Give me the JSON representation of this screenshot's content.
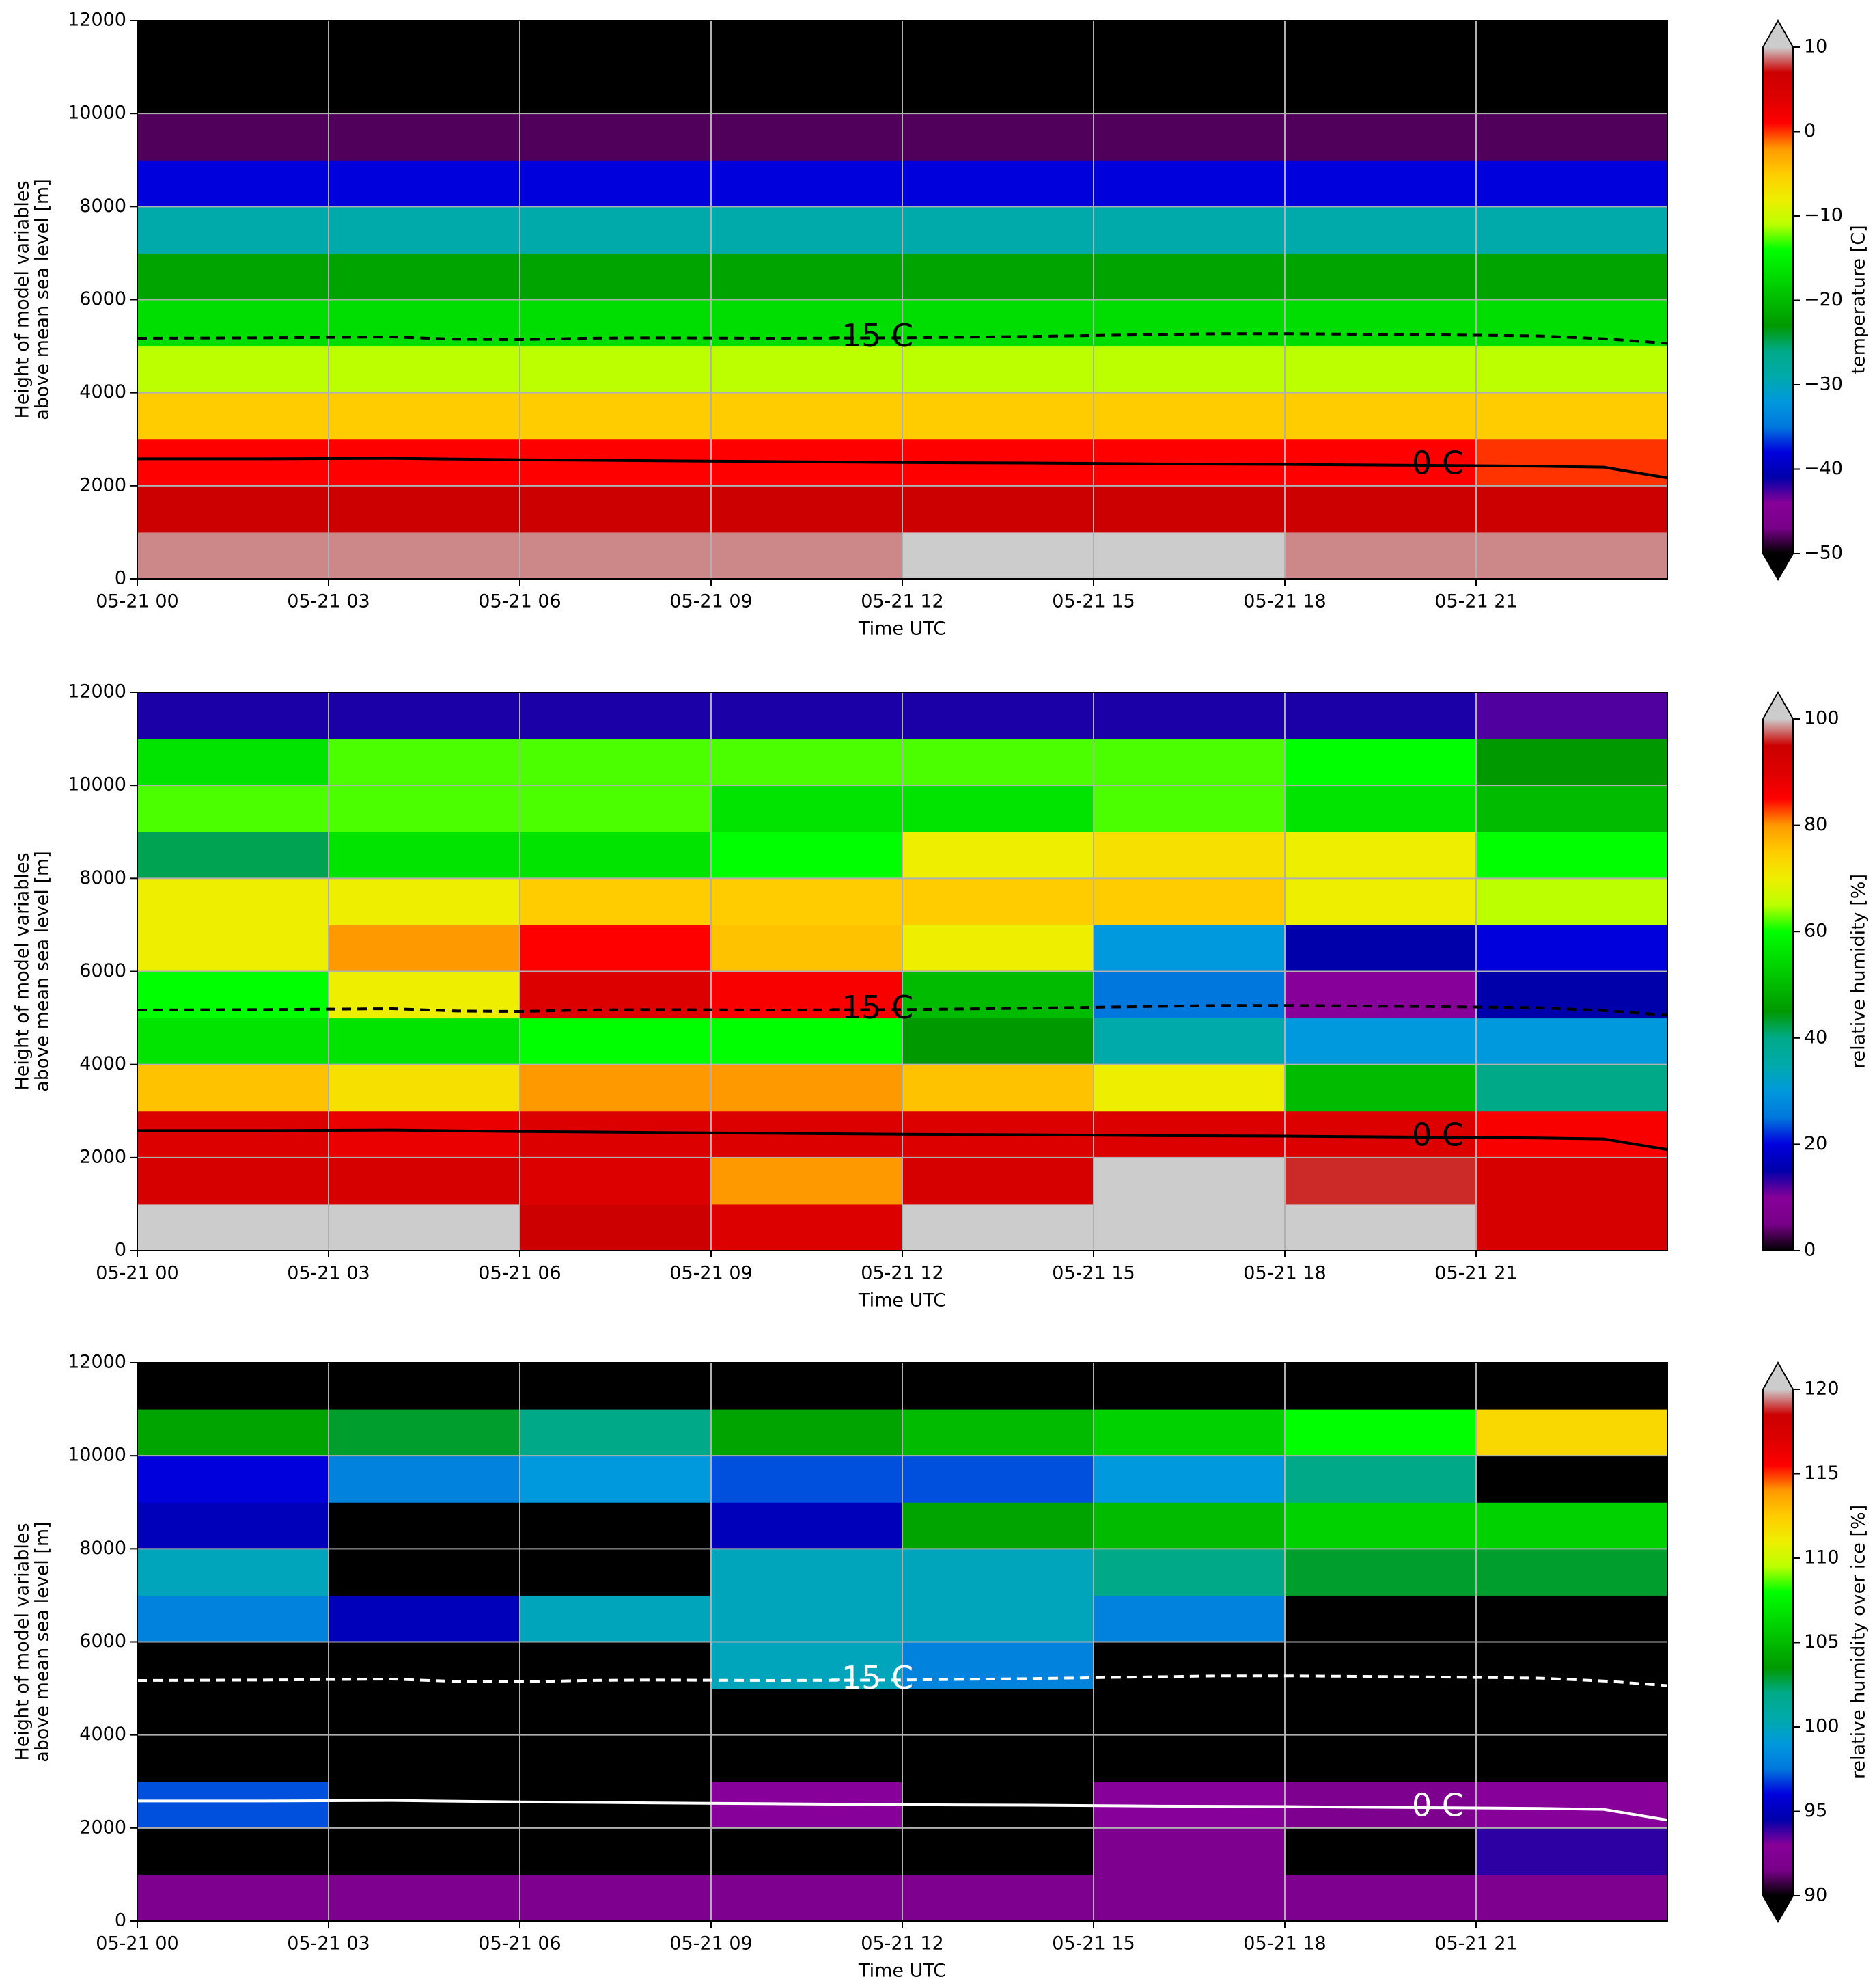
{
  "chart_data": [
    {
      "type": "heatmap",
      "xlabel": "Time UTC",
      "ylabel": [
        "Height of model variables",
        "above mean sea level [m]"
      ],
      "colorbar_label": "temperature [C]",
      "clim": [
        -50,
        10
      ],
      "extend": "both",
      "cticks": [
        {
          "value": -50,
          "label": "−50"
        },
        {
          "value": -40,
          "label": "−40"
        },
        {
          "value": -30,
          "label": "−30"
        },
        {
          "value": -20,
          "label": "−20"
        },
        {
          "value": -10,
          "label": "−10"
        },
        0,
        10
      ],
      "colormap": [
        "#000000",
        "#780088",
        "#870099",
        "#0000aa",
        "#0000dd",
        "#0077dd",
        "#0099dd",
        "#00aaaa",
        "#00aa88",
        "#009900",
        "#00bb00",
        "#00dd00",
        "#00ff00",
        "#bbff00",
        "#eeee00",
        "#ffcc00",
        "#ff9900",
        "#ff0000",
        "#dd0000",
        "#cc0000",
        "#cccccc"
      ],
      "xlim": [
        0,
        24
      ],
      "ylim": [
        0,
        12000
      ],
      "grid": true,
      "xticks": [
        {
          "value": 0,
          "label": "05-21 00"
        },
        {
          "value": 3,
          "label": "05-21 03"
        },
        {
          "value": 6,
          "label": "05-21 06"
        },
        {
          "value": 9,
          "label": "05-21 09"
        },
        {
          "value": 12,
          "label": "05-21 12"
        },
        {
          "value": 15,
          "label": "05-21 15"
        },
        {
          "value": 18,
          "label": "05-21 18"
        },
        {
          "value": 21,
          "label": "05-21 21"
        }
      ],
      "yticks": [
        0,
        2000,
        4000,
        6000,
        8000,
        10000,
        12000
      ],
      "x_edges": [
        0,
        3,
        6,
        9,
        12,
        15,
        18,
        21,
        24
      ],
      "y_edges": [
        0,
        1000,
        2000,
        3000,
        4000,
        5000,
        6000,
        7000,
        8000,
        9000,
        10000,
        11000,
        12000
      ],
      "z": [
        [
          9,
          9,
          9,
          9,
          11,
          11,
          9,
          9
        ],
        [
          7,
          7,
          7,
          7,
          7,
          7,
          7,
          7
        ],
        [
          1,
          1,
          1,
          1,
          1,
          1,
          1,
          0
        ],
        [
          -5,
          -5,
          -5,
          -5,
          -5,
          -5,
          -5,
          -5
        ],
        [
          -11,
          -11,
          -11,
          -11,
          -11,
          -11,
          -11,
          -11
        ],
        [
          -17,
          -17,
          -17,
          -17,
          -17,
          -17,
          -17,
          -17
        ],
        [
          -22,
          -22,
          -22,
          -22,
          -22,
          -22,
          -22,
          -22
        ],
        [
          -29,
          -29,
          -29,
          -29,
          -29,
          -29,
          -29,
          -29
        ],
        [
          -38,
          -38,
          -38,
          -38,
          -38,
          -38,
          -38,
          -38
        ],
        [
          -48,
          -48,
          -48,
          -48,
          -48,
          -48,
          -48,
          -48
        ],
        [
          -55,
          -55,
          -55,
          -55,
          -55,
          -55,
          -55,
          -55
        ],
        [
          -55,
          -55,
          -55,
          -55,
          -55,
          -55,
          -55,
          -55
        ]
      ],
      "contours": [
        {
          "label": "-15 C",
          "style": "dashed",
          "color": "#000000",
          "x": [
            0,
            2,
            4,
            5,
            6,
            7,
            8,
            10,
            12,
            14,
            16,
            17,
            18,
            20,
            22,
            23,
            24
          ],
          "values": [
            5170,
            5180,
            5200,
            5150,
            5140,
            5170,
            5180,
            5170,
            5180,
            5210,
            5250,
            5270,
            5270,
            5250,
            5220,
            5160,
            5060
          ]
        },
        {
          "label": "0 C",
          "style": "solid",
          "color": "#000000",
          "x": [
            0,
            2,
            4,
            6,
            8,
            10,
            12,
            14,
            16,
            18,
            20,
            22,
            23,
            24
          ],
          "values": [
            2580,
            2580,
            2590,
            2560,
            2540,
            2520,
            2500,
            2490,
            2470,
            2460,
            2440,
            2420,
            2400,
            2170
          ]
        }
      ]
    },
    {
      "type": "heatmap",
      "xlabel": "Time UTC",
      "ylabel": [
        "Height of model variables",
        "above mean sea level [m]"
      ],
      "colorbar_label": "relative humidity [%]",
      "clim": [
        0,
        100
      ],
      "extend": "max",
      "cticks": [
        0,
        20,
        40,
        60,
        80,
        100
      ],
      "colormap": [
        "#000000",
        "#780088",
        "#870099",
        "#0000aa",
        "#0000dd",
        "#0077dd",
        "#0099dd",
        "#00aaaa",
        "#00aa88",
        "#009900",
        "#00bb00",
        "#00dd00",
        "#00ff00",
        "#bbff00",
        "#eeee00",
        "#ffcc00",
        "#ff9900",
        "#ff0000",
        "#dd0000",
        "#cc0000",
        "#cccccc"
      ],
      "xlim": [
        0,
        24
      ],
      "ylim": [
        0,
        12000
      ],
      "grid": true,
      "xticks": [
        {
          "value": 0,
          "label": "05-21 00"
        },
        {
          "value": 3,
          "label": "05-21 03"
        },
        {
          "value": 6,
          "label": "05-21 06"
        },
        {
          "value": 9,
          "label": "05-21 09"
        },
        {
          "value": 12,
          "label": "05-21 12"
        },
        {
          "value": 15,
          "label": "05-21 15"
        },
        {
          "value": 18,
          "label": "05-21 18"
        },
        {
          "value": 21,
          "label": "05-21 21"
        }
      ],
      "yticks": [
        0,
        2000,
        4000,
        6000,
        8000,
        10000,
        12000
      ],
      "x_edges": [
        0,
        3,
        6,
        9,
        12,
        15,
        18,
        21,
        24
      ],
      "y_edges": [
        0,
        1000,
        2000,
        3000,
        4000,
        5000,
        6000,
        7000,
        8000,
        9000,
        10000,
        11000,
        12000
      ],
      "z": [
        [
          101,
          101,
          95,
          90,
          101,
          101,
          101,
          92
        ],
        [
          92,
          92,
          90,
          80,
          92,
          101,
          96,
          92
        ],
        [
          90,
          88,
          90,
          90,
          90,
          90,
          90,
          86
        ],
        [
          76,
          72,
          80,
          80,
          76,
          70,
          50,
          40
        ],
        [
          56,
          56,
          60,
          60,
          45,
          35,
          30,
          30
        ],
        [
          60,
          70,
          90,
          86,
          50,
          25,
          10,
          15
        ],
        [
          70,
          80,
          85,
          76,
          70,
          30,
          15,
          20
        ],
        [
          70,
          70,
          75,
          75,
          75,
          75,
          70,
          65
        ],
        [
          42,
          56,
          56,
          60,
          70,
          72,
          70,
          60
        ],
        [
          62,
          62,
          62,
          56,
          56,
          62,
          56,
          50
        ],
        [
          56,
          62,
          62,
          62,
          62,
          62,
          60,
          45
        ],
        [
          14,
          14,
          14,
          14,
          14,
          14,
          14,
          12
        ]
      ],
      "contours": [
        {
          "label": "-15 C",
          "style": "dashed",
          "color": "#000000",
          "x": [
            0,
            2,
            4,
            5,
            6,
            7,
            8,
            10,
            12,
            14,
            16,
            17,
            18,
            20,
            22,
            23,
            24
          ],
          "values": [
            5170,
            5180,
            5200,
            5150,
            5140,
            5170,
            5180,
            5170,
            5180,
            5210,
            5250,
            5270,
            5270,
            5250,
            5220,
            5160,
            5060
          ]
        },
        {
          "label": "0 C",
          "style": "solid",
          "color": "#000000",
          "x": [
            0,
            2,
            4,
            6,
            8,
            10,
            12,
            14,
            16,
            18,
            20,
            22,
            23,
            24
          ],
          "values": [
            2580,
            2580,
            2590,
            2560,
            2540,
            2520,
            2500,
            2490,
            2470,
            2460,
            2440,
            2420,
            2400,
            2170
          ]
        }
      ]
    },
    {
      "type": "heatmap",
      "xlabel": "Time UTC",
      "ylabel": [
        "Height of model variables",
        "above mean sea level [m]"
      ],
      "colorbar_label": "relative humidity over ice [%]",
      "clim": [
        90,
        120
      ],
      "extend": "both",
      "cticks": [
        90,
        95,
        100,
        105,
        110,
        115,
        120
      ],
      "colormap": [
        "#000000",
        "#780088",
        "#870099",
        "#0000aa",
        "#0000dd",
        "#0077dd",
        "#0099dd",
        "#00aaaa",
        "#00aa88",
        "#009900",
        "#00bb00",
        "#00dd00",
        "#00ff00",
        "#bbff00",
        "#eeee00",
        "#ffcc00",
        "#ff9900",
        "#ff0000",
        "#dd0000",
        "#cc0000",
        "#cccccc"
      ],
      "xlim": [
        0,
        24
      ],
      "ylim": [
        0,
        12000
      ],
      "grid": true,
      "xticks": [
        {
          "value": 0,
          "label": "05-21 00"
        },
        {
          "value": 3,
          "label": "05-21 03"
        },
        {
          "value": 6,
          "label": "05-21 06"
        },
        {
          "value": 9,
          "label": "05-21 09"
        },
        {
          "value": 12,
          "label": "05-21 12"
        },
        {
          "value": 15,
          "label": "05-21 15"
        },
        {
          "value": 18,
          "label": "05-21 18"
        },
        {
          "value": 21,
          "label": "05-21 21"
        }
      ],
      "yticks": [
        0,
        2000,
        4000,
        6000,
        8000,
        10000,
        12000
      ],
      "x_edges": [
        0,
        3,
        6,
        9,
        12,
        15,
        18,
        21,
        24
      ],
      "y_edges": [
        0,
        1000,
        2000,
        3000,
        4000,
        5000,
        6000,
        7000,
        8000,
        9000,
        10000,
        11000,
        12000
      ],
      "z": [
        [
          92,
          92,
          92,
          92,
          92,
          92,
          92,
          92
        ],
        [
          85,
          85,
          85,
          85,
          85,
          92,
          90,
          94
        ],
        [
          97,
          85,
          85,
          93,
          85,
          93,
          92,
          93
        ],
        [
          85,
          85,
          85,
          85,
          85,
          85,
          85,
          85
        ],
        [
          85,
          85,
          85,
          85,
          85,
          85,
          85,
          85
        ],
        [
          85,
          85,
          85,
          100,
          98,
          85,
          85,
          85
        ],
        [
          98,
          95,
          100,
          100,
          100,
          98,
          85,
          85
        ],
        [
          100,
          85,
          85,
          100,
          100,
          102,
          103,
          103
        ],
        [
          95,
          85,
          85,
          95,
          104,
          105,
          106,
          106
        ],
        [
          96,
          98,
          99,
          97,
          97,
          99,
          102,
          85
        ],
        [
          104,
          103,
          102,
          104,
          105,
          106,
          108,
          112
        ],
        [
          85,
          85,
          85,
          85,
          85,
          85,
          85,
          85
        ]
      ],
      "contours": [
        {
          "label": "-15 C",
          "style": "dashed",
          "color": "#ffffff",
          "x": [
            0,
            2,
            4,
            5,
            6,
            7,
            8,
            10,
            12,
            14,
            16,
            17,
            18,
            20,
            22,
            23,
            24
          ],
          "values": [
            5170,
            5180,
            5200,
            5150,
            5140,
            5170,
            5180,
            5170,
            5180,
            5210,
            5250,
            5270,
            5270,
            5250,
            5220,
            5160,
            5060
          ]
        },
        {
          "label": "0 C",
          "style": "solid",
          "color": "#ffffff",
          "x": [
            0,
            2,
            4,
            6,
            8,
            10,
            12,
            14,
            16,
            18,
            20,
            22,
            23,
            24
          ],
          "values": [
            2580,
            2580,
            2590,
            2560,
            2540,
            2520,
            2500,
            2490,
            2470,
            2460,
            2440,
            2420,
            2400,
            2170
          ]
        }
      ]
    }
  ]
}
